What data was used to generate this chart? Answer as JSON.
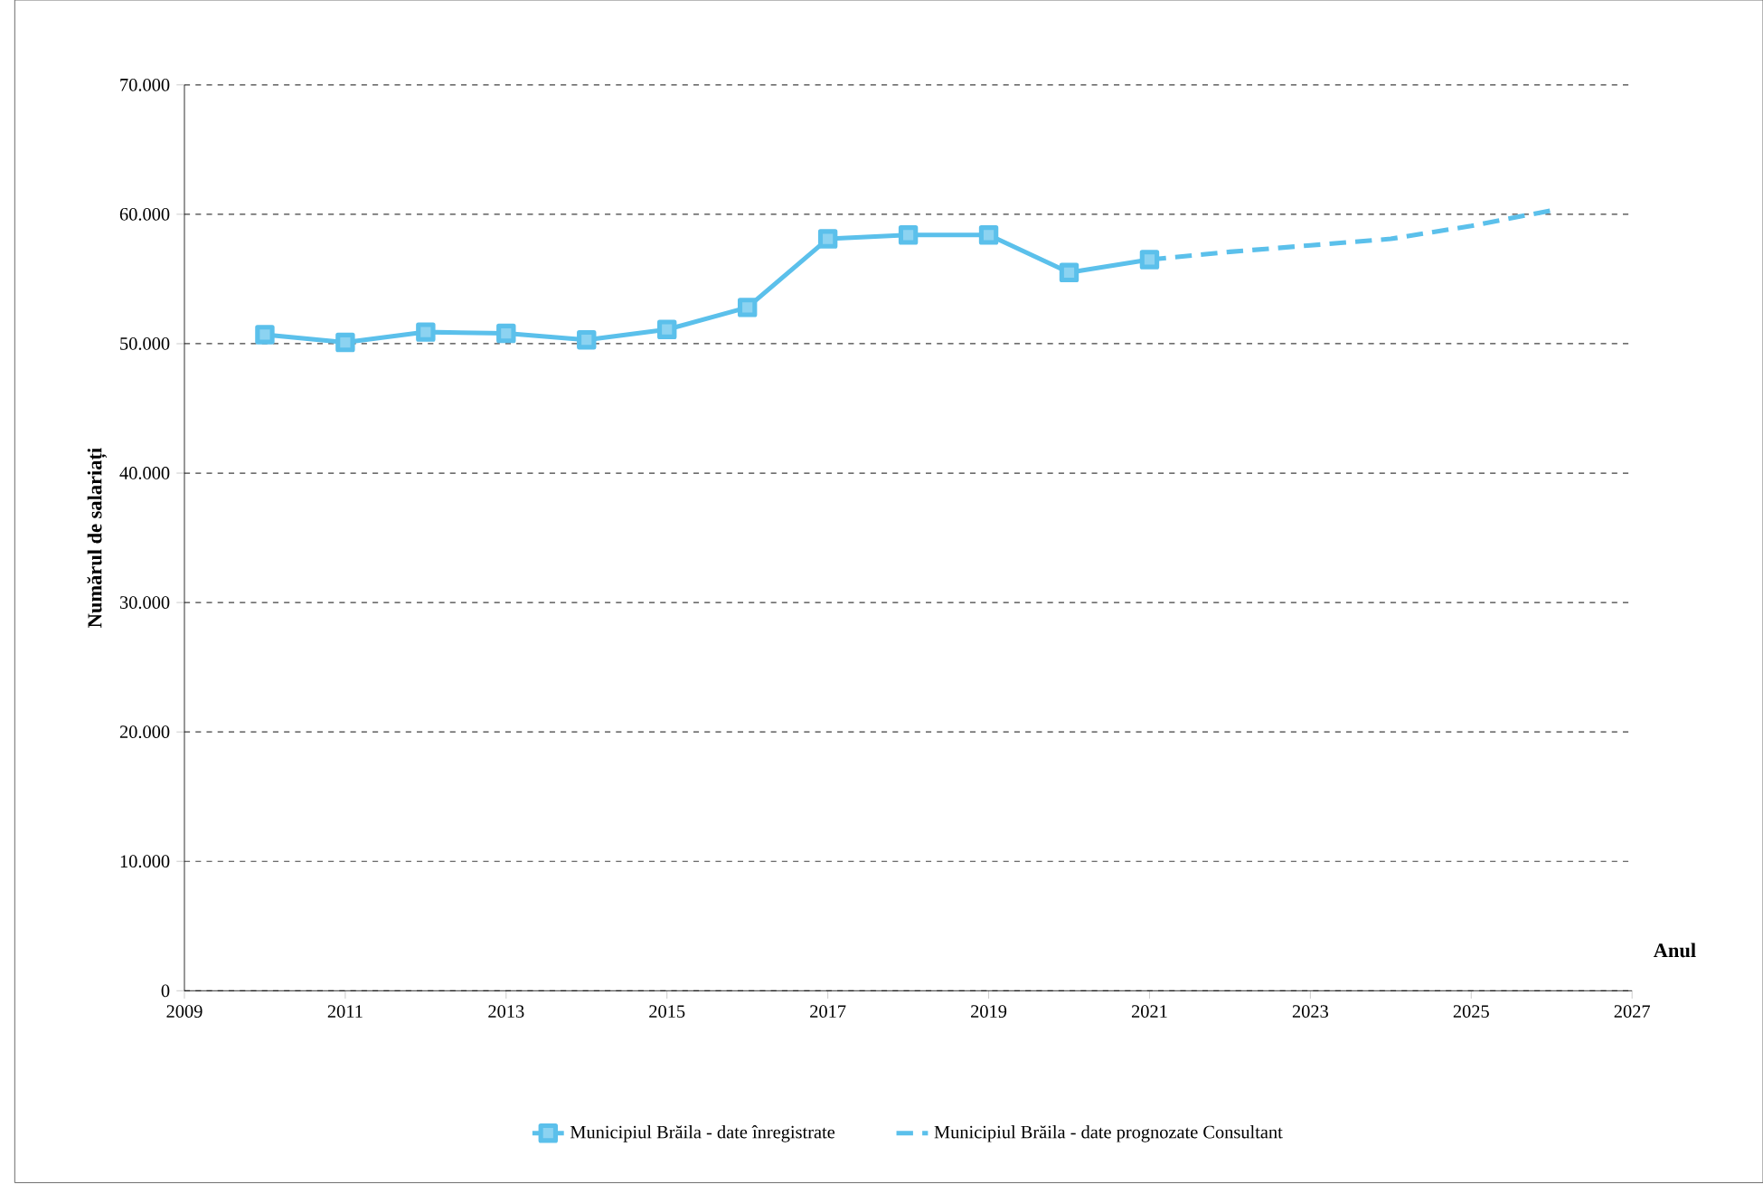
{
  "chart_data": {
    "type": "line",
    "xlabel": "Anul",
    "ylabel": "Numărul de salariați",
    "xlim": [
      2009,
      2027
    ],
    "xticks": [
      2009,
      2011,
      2013,
      2015,
      2017,
      2019,
      2021,
      2023,
      2025,
      2027
    ],
    "ylim": [
      0,
      70000
    ],
    "yticks": [
      {
        "value": 0,
        "label": "0"
      },
      {
        "value": 10000,
        "label": "10.000"
      },
      {
        "value": 20000,
        "label": "20.000"
      },
      {
        "value": 30000,
        "label": "30.000"
      },
      {
        "value": 40000,
        "label": "40.000"
      },
      {
        "value": 50000,
        "label": "50.000"
      },
      {
        "value": 60000,
        "label": "60.000"
      },
      {
        "value": 70000,
        "label": "70.000"
      }
    ],
    "grid": "y",
    "legend": "bottom",
    "series": [
      {
        "name": "Municipiul Brăila - date înregistrate",
        "color": "#5bc0eb",
        "marker": "square",
        "line_style": "solid",
        "x": [
          2010,
          2011,
          2012,
          2013,
          2014,
          2015,
          2016,
          2017,
          2018,
          2019,
          2020,
          2021
        ],
        "values": [
          50700,
          50100,
          50900,
          50800,
          50300,
          51100,
          52800,
          58100,
          58400,
          58400,
          55500,
          56500
        ]
      },
      {
        "name": "Municipiul Brăila - date prognozate Consultant",
        "color": "#5bc0eb",
        "marker": "none",
        "line_style": "dashed",
        "x": [
          2021,
          2022,
          2023,
          2024,
          2025,
          2026
        ],
        "values": [
          56500,
          57100,
          57600,
          58100,
          59100,
          60300
        ]
      }
    ]
  }
}
